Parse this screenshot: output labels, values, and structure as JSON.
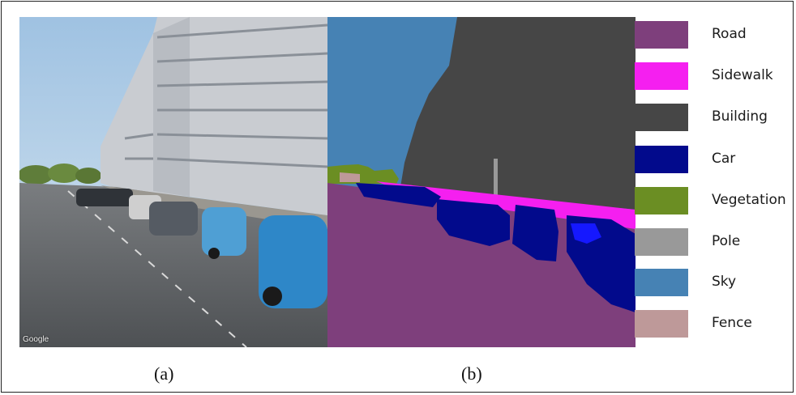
{
  "figure": {
    "captions": {
      "a": "(a)",
      "b": "(b)"
    },
    "watermark": "Google"
  },
  "legend": {
    "items": [
      {
        "label": "Road",
        "color": "#7e3f7c"
      },
      {
        "label": "Sidewalk",
        "color": "#f51ff0"
      },
      {
        "label": "Building",
        "color": "#464646"
      },
      {
        "label": "Car",
        "color": "#020a8c"
      },
      {
        "label": "Vegetation",
        "color": "#6b8e23"
      },
      {
        "label": "Pole",
        "color": "#999999"
      },
      {
        "label": "Sky",
        "color": "#4682b4"
      },
      {
        "label": "Fence",
        "color": "#be9999"
      }
    ]
  }
}
